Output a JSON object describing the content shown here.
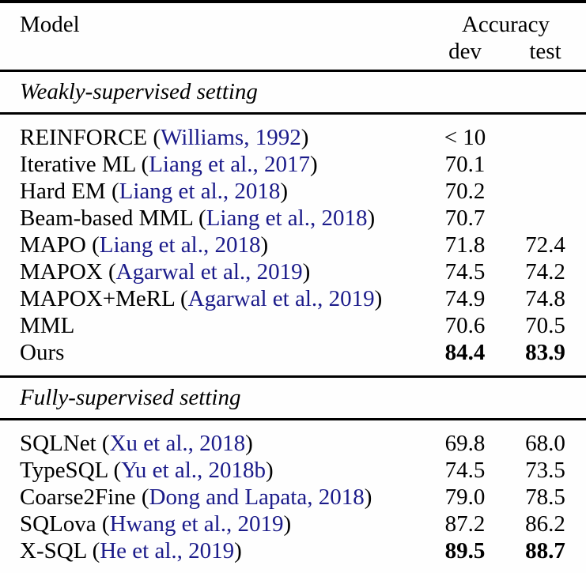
{
  "colors": {
    "text": "#000000",
    "citation_link": "#1b1b8a",
    "rule": "#000000",
    "background": "#fefefe"
  },
  "table": {
    "header": {
      "model": "Model",
      "accuracy": "Accuracy",
      "dev": "dev",
      "test": "test"
    },
    "sections": [
      {
        "title": "Weakly-supervised setting",
        "rows": [
          {
            "name": "REINFORCE ",
            "open": "(",
            "cite": "Williams, 1992",
            "close": ")",
            "dev": "< 10",
            "test": ""
          },
          {
            "name": "Iterative ML ",
            "open": "(",
            "cite": "Liang et al., 2017",
            "close": ")",
            "dev": "70.1",
            "test": ""
          },
          {
            "name": "Hard EM ",
            "open": "(",
            "cite": "Liang et al., 2018",
            "close": ")",
            "dev": "70.2",
            "test": ""
          },
          {
            "name": "Beam-based MML ",
            "open": "(",
            "cite": "Liang et al., 2018",
            "close": ")",
            "dev": "70.7",
            "test": ""
          },
          {
            "name": "MAPO ",
            "open": "(",
            "cite": "Liang et al., 2018",
            "close": ")",
            "dev": "71.8",
            "test": "72.4"
          },
          {
            "name": "MAPOX ",
            "open": "(",
            "cite": "Agarwal et al., 2019",
            "close": ")",
            "dev": "74.5",
            "test": "74.2"
          },
          {
            "name": "MAPOX+MeRL ",
            "open": "(",
            "cite": "Agarwal et al., 2019",
            "close": ")",
            "dev": "74.9",
            "test": "74.8"
          },
          {
            "name": "MML",
            "open": "",
            "cite": "",
            "close": "",
            "dev": "70.6",
            "test": "70.5"
          },
          {
            "name": "Ours",
            "open": "",
            "cite": "",
            "close": "",
            "dev": "84.4",
            "test": "83.9"
          }
        ]
      },
      {
        "title": "Fully-supervised setting",
        "rows": [
          {
            "name": "SQLNet ",
            "open": "(",
            "cite": "Xu et al., 2018",
            "close": ")",
            "dev": "69.8",
            "test": "68.0"
          },
          {
            "name": "TypeSQL ",
            "open": "(",
            "cite": "Yu et al., 2018b",
            "close": ")",
            "dev": "74.5",
            "test": "73.5"
          },
          {
            "name": "Coarse2Fine ",
            "open": "(",
            "cite": "Dong and Lapata, 2018",
            "close": ")",
            "dev": "79.0",
            "test": "78.5"
          },
          {
            "name": "SQLova ",
            "open": "(",
            "cite": "Hwang et al., 2019",
            "close": ")",
            "dev": "87.2",
            "test": "86.2"
          },
          {
            "name": "X-SQL ",
            "open": "(",
            "cite": "He et al., 2019",
            "close": ")",
            "dev": "89.5",
            "test": "88.7"
          }
        ]
      }
    ]
  }
}
